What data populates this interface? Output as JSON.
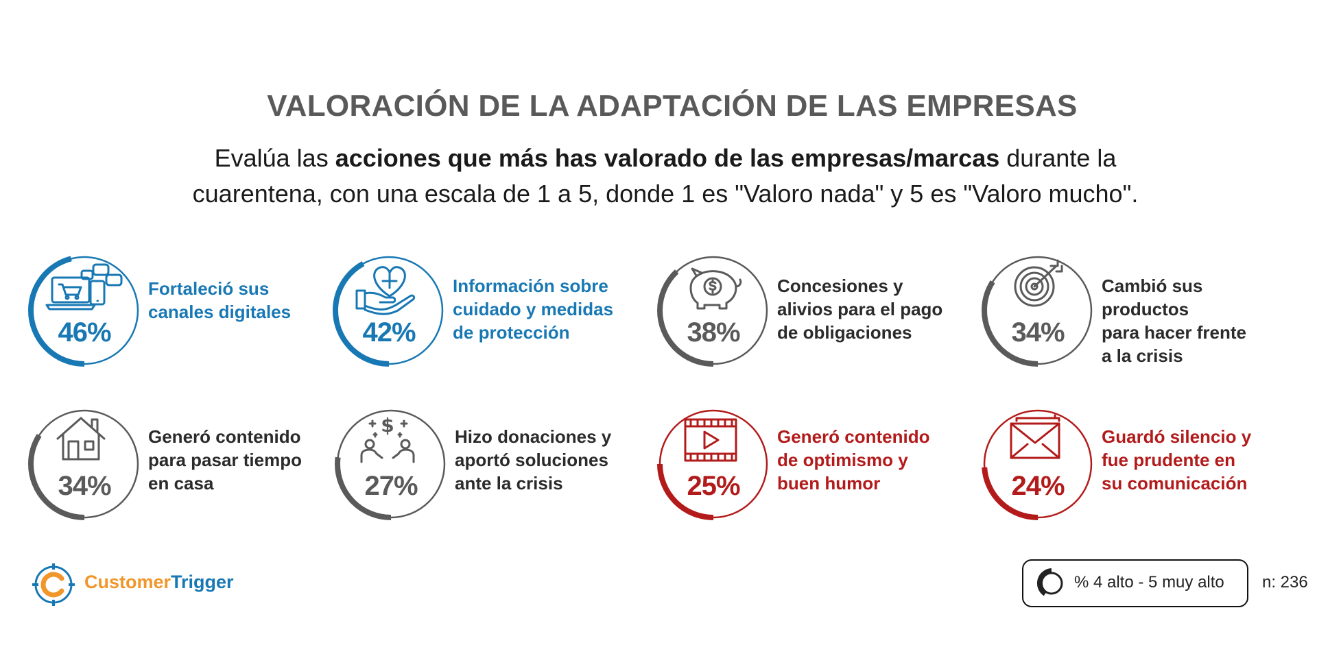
{
  "title": "VALORACIÓN DE LA ADAPTACIÓN DE LAS EMPRESAS",
  "subtitle": {
    "pre": "Evalúa las ",
    "bold": "acciones que más has valorado de las empresas/marcas",
    "post1": " durante la",
    "line2": "cuarentena, con una escala de 1 a 5, donde 1 es \"Valoro nada\" y 5 es \"Valoro mucho\"."
  },
  "colors": {
    "blue": "#1878b4",
    "gray": "#5a5a5a",
    "red": "#b31b1b",
    "title": "#595959"
  },
  "chart_data": {
    "type": "radial-progress",
    "title": "VALORACIÓN DE LA ADAPTACIÓN DE LAS EMPRESAS",
    "unit": "%",
    "items": [
      {
        "label_lines": [
          "Fortaleció sus",
          "canales digitales"
        ],
        "value": 46,
        "display": "46%",
        "color": "blue",
        "icon": "laptop-cart-icon"
      },
      {
        "label_lines": [
          "Información sobre",
          "cuidado y medidas",
          "de protección"
        ],
        "value": 42,
        "display": "42%",
        "color": "blue",
        "icon": "heart-hand-icon"
      },
      {
        "label_lines": [
          "Concesiones y",
          "alivios para el pago",
          "de obligaciones"
        ],
        "value": 38,
        "display": "38%",
        "color": "gray",
        "icon": "piggy-bank-icon"
      },
      {
        "label_lines": [
          "Cambió sus productos",
          "para hacer frente",
          "a la crisis"
        ],
        "value": 34,
        "display": "34%",
        "color": "gray",
        "icon": "target-icon"
      },
      {
        "label_lines": [
          "Generó contenido",
          "para pasar tiempo",
          "en casa"
        ],
        "value": 34,
        "display": "34%",
        "color": "gray",
        "icon": "house-icon"
      },
      {
        "label_lines": [
          "Hizo donaciones y",
          "aportó soluciones",
          "ante la crisis"
        ],
        "value": 27,
        "display": "27%",
        "color": "gray",
        "icon": "donation-icon"
      },
      {
        "label_lines": [
          "Generó contenido",
          "de optimismo y",
          "buen humor"
        ],
        "value": 25,
        "display": "25%",
        "color": "red",
        "icon": "film-play-icon"
      },
      {
        "label_lines": [
          "Guardó silencio y",
          "fue prudente en",
          "su comunicación"
        ],
        "value": 24,
        "display": "24%",
        "color": "red",
        "icon": "envelope-icon"
      }
    ]
  },
  "legend": {
    "text": "% 4 alto -  5 muy alto",
    "icon": "ring-gauge-icon"
  },
  "sample": "n: 236",
  "brand": {
    "part1": "Customer",
    "part2": "Trigger",
    "color1": "#f0962a",
    "color2": "#1878b4",
    "icon": "target-c-logo-icon"
  }
}
